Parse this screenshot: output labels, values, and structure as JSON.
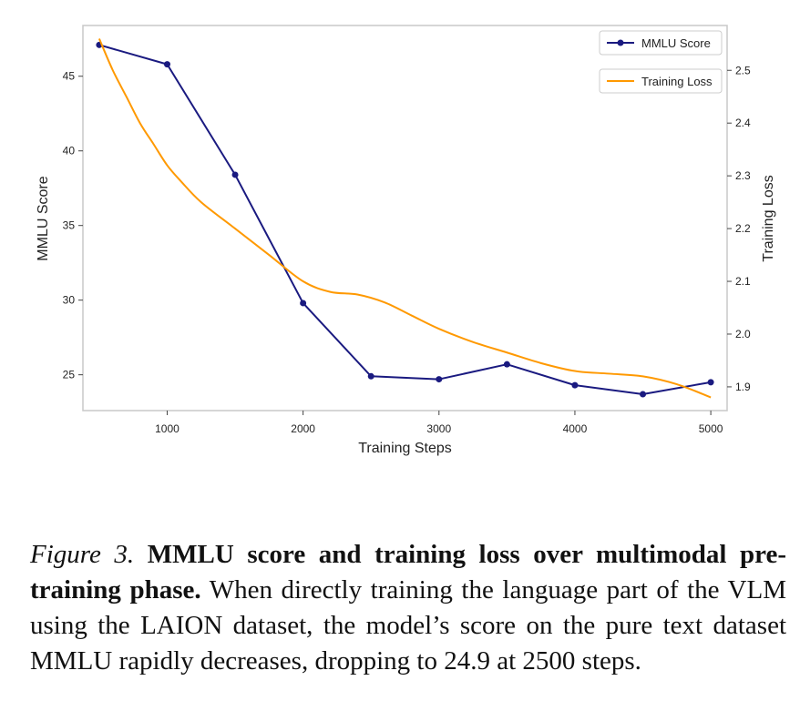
{
  "chart_data": {
    "type": "line",
    "xlabel": "Training Steps",
    "x_ticks": [
      1000,
      2000,
      3000,
      4000,
      5000
    ],
    "xlim": [
      380,
      5120
    ],
    "y_left": {
      "label": "MMLU Score",
      "ticks": [
        25,
        30,
        35,
        40,
        45
      ],
      "lim": [
        22.6,
        48.4
      ]
    },
    "y_right": {
      "label": "Training Loss",
      "ticks": [
        1.9,
        2.0,
        2.1,
        2.2,
        2.3,
        2.4,
        2.5
      ],
      "lim": [
        1.855,
        2.585
      ]
    },
    "series": [
      {
        "name": "MMLU Score",
        "axis": "left",
        "color": "#1a1a80",
        "marker": "circle",
        "x": [
          500,
          1000,
          1500,
          2000,
          2500,
          3000,
          3500,
          4000,
          4500,
          5000
        ],
        "y": [
          47.1,
          45.8,
          38.4,
          29.8,
          24.9,
          24.7,
          25.7,
          24.3,
          23.7,
          24.5
        ]
      },
      {
        "name": "Training Loss",
        "axis": "right",
        "color": "#ff9900",
        "marker": "none",
        "x": [
          500,
          600,
          700,
          800,
          900,
          1000,
          1100,
          1250,
          1500,
          1750,
          2000,
          2200,
          2400,
          2600,
          2800,
          3000,
          3250,
          3500,
          3750,
          4000,
          4250,
          4500,
          4750,
          5000
        ],
        "y": [
          2.56,
          2.5,
          2.45,
          2.4,
          2.36,
          2.32,
          2.29,
          2.25,
          2.2,
          2.15,
          2.1,
          2.08,
          2.075,
          2.06,
          2.035,
          2.01,
          1.985,
          1.965,
          1.945,
          1.93,
          1.925,
          1.92,
          1.905,
          1.88
        ]
      }
    ],
    "legend": [
      "MMLU Score",
      "Training Loss"
    ],
    "legend_placement": "top-right",
    "grid": false
  },
  "caption": {
    "label": "Figure 3.",
    "title": "MMLU score and training loss over multimodal pre-training phase.",
    "text": "When directly training the language part of the VLM using the LAION dataset, the model’s score on the pure text dataset MMLU rapidly decreases, dropping to 24.9 at 2500 steps."
  }
}
